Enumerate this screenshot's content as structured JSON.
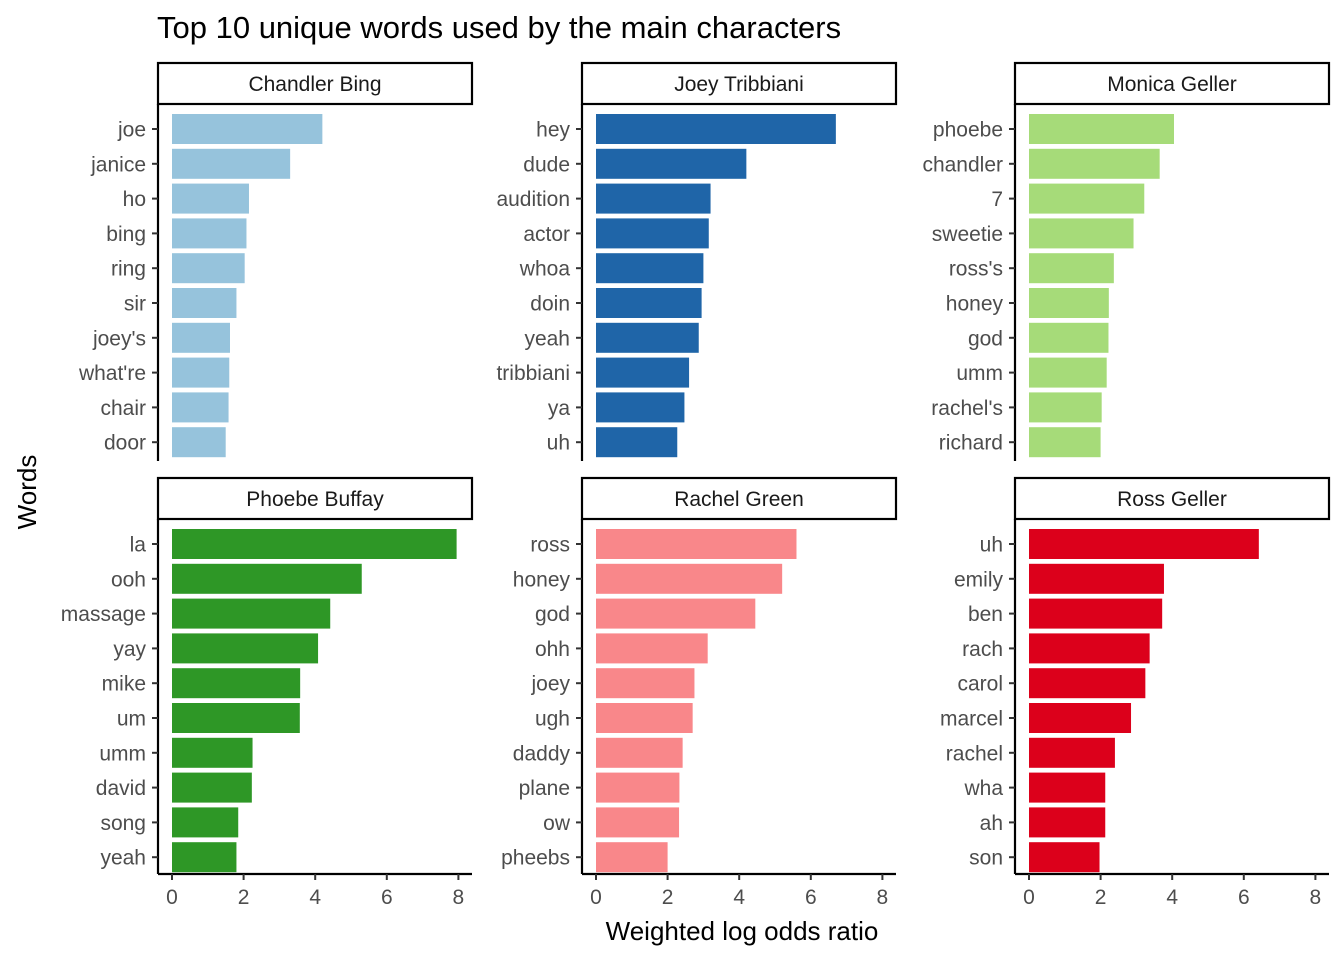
{
  "chart_data": {
    "type": "bar",
    "orientation": "horizontal",
    "title": "Top 10 unique words used by the main characters",
    "xlabel": "Weighted log odds ratio",
    "ylabel": "Words",
    "xlim": [
      0,
      8
    ],
    "xticks": [
      0,
      2,
      4,
      6,
      8
    ],
    "grid": false,
    "legend": "none",
    "facets": [
      {
        "name": "Chandler Bing",
        "color": "#96C3DC",
        "categories": [
          "joe",
          "janice",
          "ho",
          "bing",
          "ring",
          "sir",
          "joey's",
          "what're",
          "chair",
          "door"
        ],
        "values": [
          4.2,
          3.3,
          2.15,
          2.08,
          2.03,
          1.8,
          1.62,
          1.6,
          1.58,
          1.5
        ]
      },
      {
        "name": "Joey Tribbiani",
        "color": "#1F65A8",
        "categories": [
          "hey",
          "dude",
          "audition",
          "actor",
          "whoa",
          "doin",
          "yeah",
          "tribbiani",
          "ya",
          "uh"
        ],
        "values": [
          6.7,
          4.2,
          3.2,
          3.15,
          3.0,
          2.95,
          2.87,
          2.6,
          2.47,
          2.27
        ]
      },
      {
        "name": "Monica Geller",
        "color": "#A6DB79",
        "categories": [
          "phoebe",
          "chandler",
          "7",
          "sweetie",
          "ross's",
          "honey",
          "god",
          "umm",
          "rachel's",
          "richard"
        ],
        "values": [
          4.05,
          3.65,
          3.22,
          2.92,
          2.37,
          2.23,
          2.22,
          2.17,
          2.03,
          2.0
        ]
      },
      {
        "name": "Phoebe Buffay",
        "color": "#2E9726",
        "categories": [
          "la",
          "ooh",
          "massage",
          "yay",
          "mike",
          "um",
          "umm",
          "david",
          "song",
          "yeah"
        ],
        "values": [
          7.95,
          5.3,
          4.42,
          4.08,
          3.58,
          3.57,
          2.25,
          2.23,
          1.85,
          1.8
        ]
      },
      {
        "name": "Rachel Green",
        "color": "#F9878A",
        "categories": [
          "ross",
          "honey",
          "god",
          "ohh",
          "joey",
          "ugh",
          "daddy",
          "plane",
          "ow",
          "pheebs"
        ],
        "values": [
          5.6,
          5.2,
          4.45,
          3.12,
          2.75,
          2.7,
          2.42,
          2.33,
          2.32,
          2.0
        ]
      },
      {
        "name": "Ross Geller",
        "color": "#DC001B",
        "categories": [
          "uh",
          "emily",
          "ben",
          "rach",
          "carol",
          "marcel",
          "rachel",
          "wha",
          "ah",
          "son"
        ],
        "values": [
          6.42,
          3.77,
          3.72,
          3.37,
          3.25,
          2.85,
          2.4,
          2.13,
          2.13,
          1.97
        ]
      }
    ]
  }
}
